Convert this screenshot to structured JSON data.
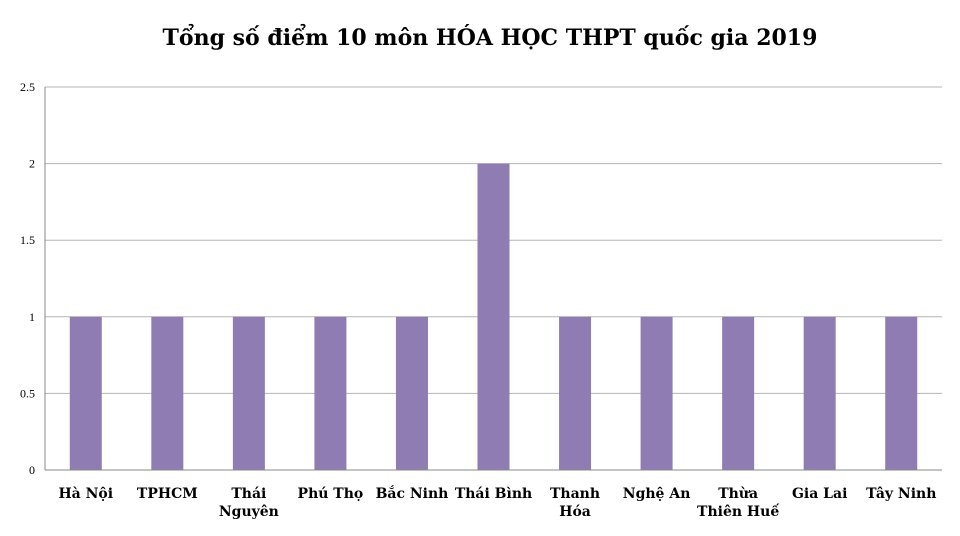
{
  "chart_data": {
    "type": "bar",
    "title": "Tổng số điểm 10 môn HÓA HỌC THPT quốc gia 2019",
    "categories": [
      "Hà Nội",
      "TPHCM",
      "Thái Nguyên",
      "Phú Thọ",
      "Bắc Ninh",
      "Thái Bình",
      "Thanh Hóa",
      "Nghệ An",
      "Thừa Thiên Huế",
      "Gia Lai",
      "Tây Ninh"
    ],
    "category_lines": [
      [
        "Hà Nội"
      ],
      [
        "TPHCM"
      ],
      [
        "Thái",
        "Nguyên"
      ],
      [
        "Phú Thọ"
      ],
      [
        "Bắc Ninh"
      ],
      [
        "Thái Bình"
      ],
      [
        "Thanh",
        "Hóa"
      ],
      [
        "Nghệ An"
      ],
      [
        "Thừa",
        "Thiên Huế"
      ],
      [
        "Gia Lai"
      ],
      [
        "Tây Ninh"
      ]
    ],
    "values": [
      1,
      1,
      1,
      1,
      1,
      2,
      1,
      1,
      1,
      1,
      1
    ],
    "xlabel": "",
    "ylabel": "",
    "ylim": [
      0,
      2.5
    ],
    "yticks": [
      0,
      0.5,
      1,
      1.5,
      2,
      2.5
    ],
    "ytick_labels": [
      "0",
      "0.5",
      "1",
      "1.5",
      "2",
      "2.5"
    ],
    "grid": true,
    "legend": "none",
    "bar_color": "#8e7cb3"
  }
}
